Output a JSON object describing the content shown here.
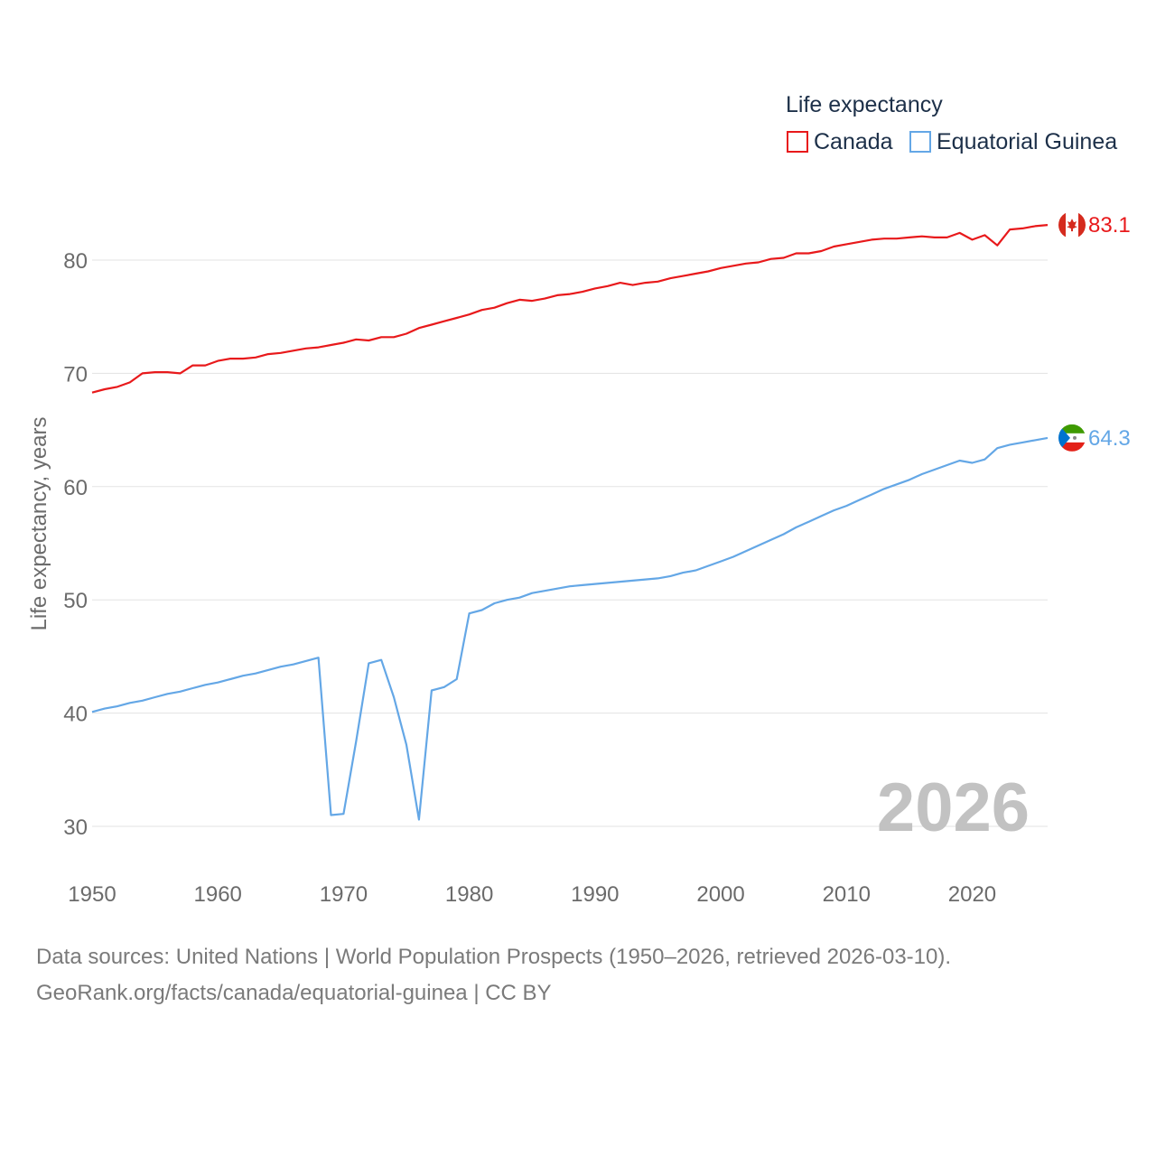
{
  "chart_data": {
    "type": "line",
    "title": "Life expectancy",
    "ylabel": "Life expectancy, years",
    "xlabel": "",
    "xlim": [
      1950,
      2026
    ],
    "ylim": [
      30,
      83.1
    ],
    "x_ticks": [
      "1950",
      "1960",
      "1970",
      "1980",
      "1990",
      "2000",
      "2010",
      "2020"
    ],
    "y_ticks": [
      "30",
      "40",
      "50",
      "60",
      "70",
      "80"
    ],
    "grid": true,
    "legend_position": "top-right",
    "year_label": "2026",
    "x": [
      1950,
      1951,
      1952,
      1953,
      1954,
      1955,
      1956,
      1957,
      1958,
      1959,
      1960,
      1961,
      1962,
      1963,
      1964,
      1965,
      1966,
      1967,
      1968,
      1969,
      1970,
      1971,
      1972,
      1973,
      1974,
      1975,
      1976,
      1977,
      1978,
      1979,
      1980,
      1981,
      1982,
      1983,
      1984,
      1985,
      1986,
      1987,
      1988,
      1989,
      1990,
      1991,
      1992,
      1993,
      1994,
      1995,
      1996,
      1997,
      1998,
      1999,
      2000,
      2001,
      2002,
      2003,
      2004,
      2005,
      2006,
      2007,
      2008,
      2009,
      2010,
      2011,
      2012,
      2013,
      2014,
      2015,
      2016,
      2017,
      2018,
      2019,
      2020,
      2021,
      2022,
      2023,
      2024,
      2025,
      2026
    ],
    "series": [
      {
        "name": "Canada",
        "color": "#e8191b",
        "end_label": "83.1",
        "flag": "canada-flag-icon",
        "values": [
          68.3,
          68.6,
          68.8,
          69.2,
          70.0,
          70.1,
          70.1,
          70.0,
          70.7,
          70.7,
          71.1,
          71.3,
          71.3,
          71.4,
          71.7,
          71.8,
          72.0,
          72.2,
          72.3,
          72.5,
          72.7,
          73.0,
          72.9,
          73.2,
          73.2,
          73.5,
          74.0,
          74.3,
          74.6,
          74.9,
          75.2,
          75.6,
          75.8,
          76.2,
          76.5,
          76.4,
          76.6,
          76.9,
          77.0,
          77.2,
          77.5,
          77.7,
          78.0,
          77.8,
          78.0,
          78.1,
          78.4,
          78.6,
          78.8,
          79.0,
          79.3,
          79.5,
          79.7,
          79.8,
          80.1,
          80.2,
          80.6,
          80.6,
          80.8,
          81.2,
          81.4,
          81.6,
          81.8,
          81.9,
          81.9,
          82.0,
          82.1,
          82.0,
          82.0,
          82.4,
          81.8,
          82.2,
          81.3,
          82.7,
          82.8,
          83.0,
          83.1
        ]
      },
      {
        "name": "Equatorial Guinea",
        "color": "#64a7e6",
        "end_label": "64.3",
        "flag": "equatorial-guinea-flag-icon",
        "values": [
          40.1,
          40.4,
          40.6,
          40.9,
          41.1,
          41.4,
          41.7,
          41.9,
          42.2,
          42.5,
          42.7,
          43.0,
          43.3,
          43.5,
          43.8,
          44.1,
          44.3,
          44.6,
          44.9,
          31.0,
          31.1,
          37.5,
          44.4,
          44.7,
          41.4,
          37.2,
          30.6,
          42.0,
          42.3,
          43.0,
          48.8,
          49.1,
          49.7,
          50.0,
          50.2,
          50.6,
          50.8,
          51.0,
          51.2,
          51.3,
          51.4,
          51.5,
          51.6,
          51.7,
          51.8,
          51.9,
          52.1,
          52.4,
          52.6,
          53.0,
          53.4,
          53.8,
          54.3,
          54.8,
          55.3,
          55.8,
          56.4,
          56.9,
          57.4,
          57.9,
          58.3,
          58.8,
          59.3,
          59.8,
          60.2,
          60.6,
          61.1,
          61.5,
          61.9,
          62.3,
          62.1,
          62.4,
          63.4,
          63.7,
          63.9,
          64.1,
          64.3
        ]
      }
    ]
  },
  "source_line_1": "Data sources: United Nations | World Population Prospects (1950–2026, retrieved 2026-03-10).",
  "source_line_2": "GeoRank.org/facts/canada/equatorial-guinea | CC BY"
}
